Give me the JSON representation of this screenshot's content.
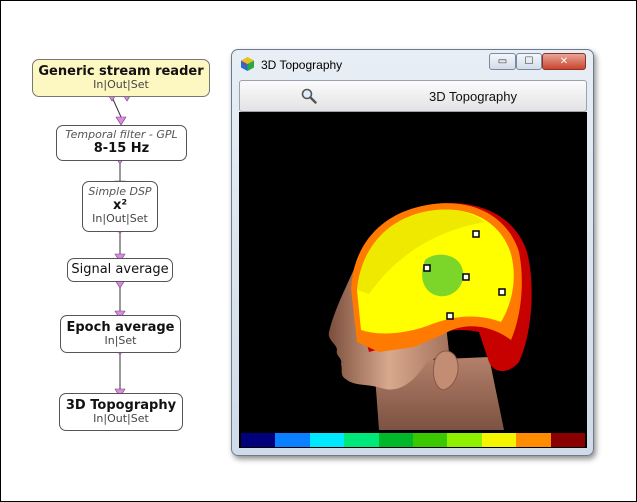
{
  "pipeline": {
    "reader": {
      "title": "Generic stream reader",
      "io": [
        "In",
        "Out",
        "Set"
      ]
    },
    "temporal": {
      "subtitle": "Temporal filter - GPL",
      "title": "8-15 Hz"
    },
    "dsp": {
      "subtitle": "Simple DSP",
      "title": "x²",
      "io": [
        "In",
        "Out",
        "Set"
      ]
    },
    "signal_average": {
      "title": "Signal average"
    },
    "epoch_average": {
      "title": "Epoch average",
      "io": [
        "In",
        "Set"
      ]
    },
    "topography": {
      "title": "3D Topography",
      "io": [
        "In",
        "Out",
        "Set"
      ]
    }
  },
  "window": {
    "title": "3D Topography",
    "controls": {
      "minimize": "▭",
      "maximize": "☐",
      "close": "✕"
    },
    "toolbar_label": "3D Topography",
    "icons": [
      "app-cube-icon",
      "search-icon"
    ],
    "colormap": [
      "#00007a",
      "#0a7fff",
      "#00e8ff",
      "#00e87a",
      "#00b82a",
      "#3ac800",
      "#8ef000",
      "#f5f500",
      "#ff8c00",
      "#8a0000"
    ]
  }
}
